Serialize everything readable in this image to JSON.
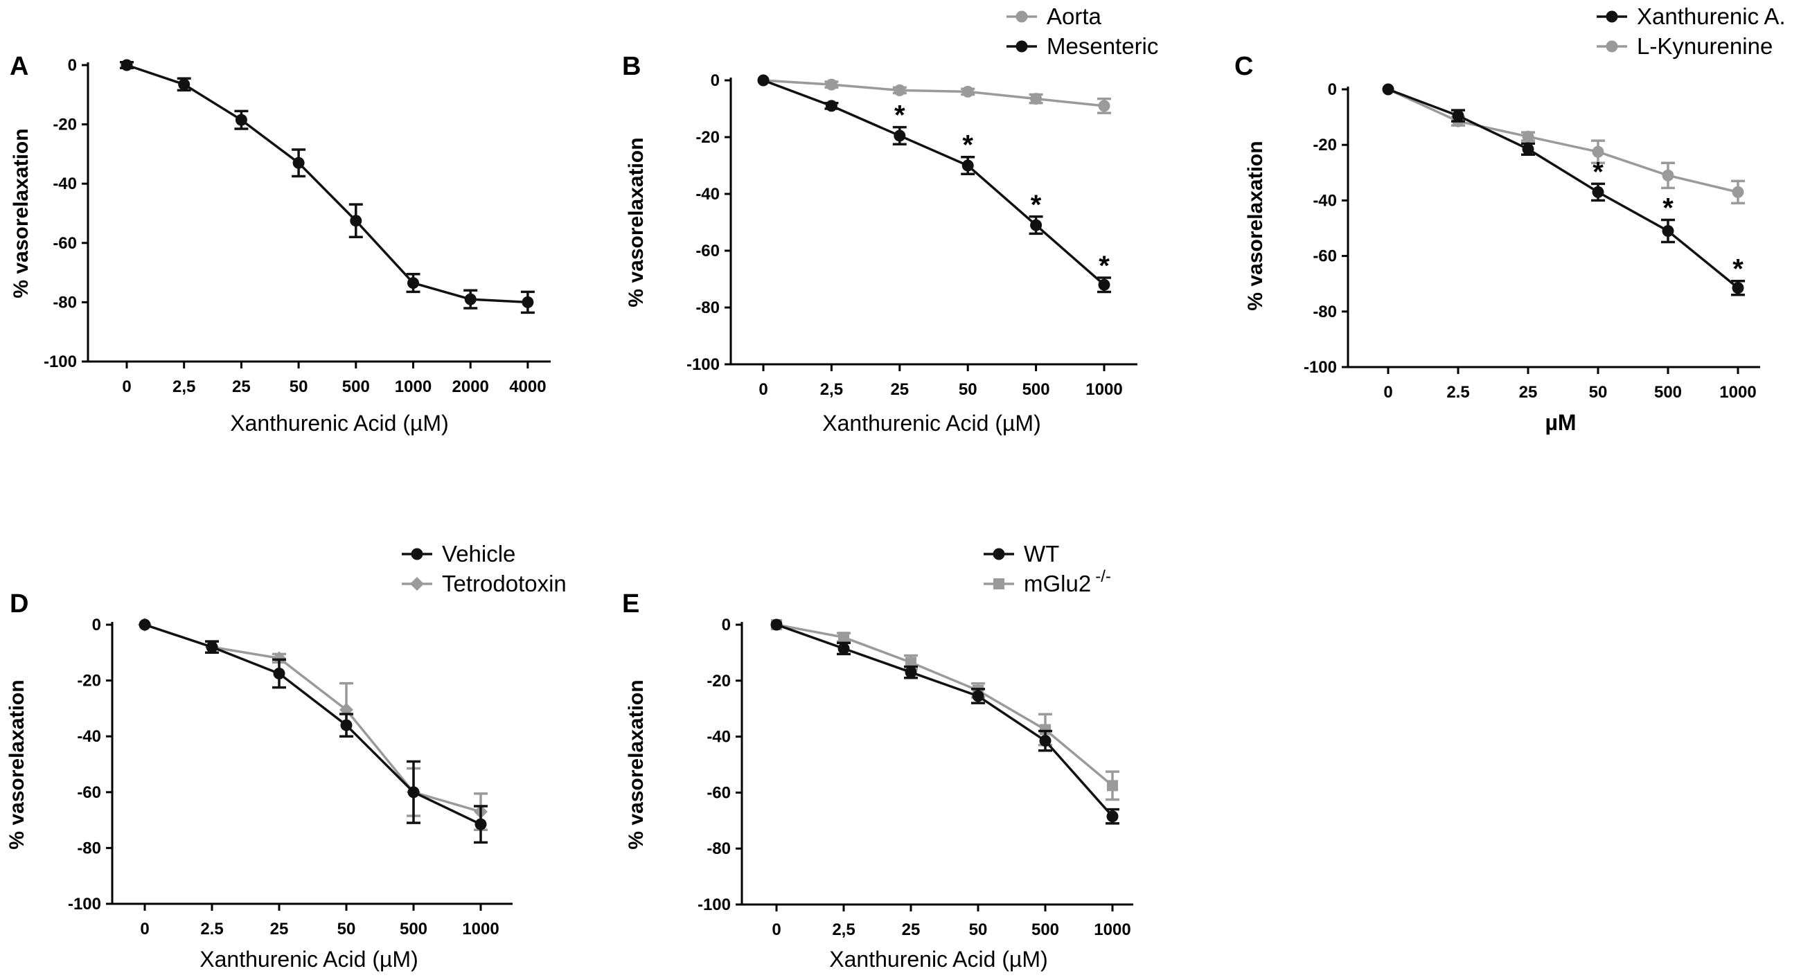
{
  "colors": {
    "black_series": "#111111",
    "gray_series": "#9a9a9a",
    "axis": "#000000"
  },
  "chart_data": [
    {
      "panel": "A",
      "type": "line",
      "xlabel": "Xanthurenic Acid (µM)",
      "ylabel": "% vasorelaxation",
      "ylim": [
        -100,
        0
      ],
      "yticks": [
        "0",
        "-20",
        "-40",
        "-60",
        "-80",
        "-100"
      ],
      "categories": [
        "0",
        "2,5",
        "25",
        "50",
        "500",
        "1000",
        "2000",
        "4000"
      ],
      "legend": "none",
      "series": [
        {
          "name": "Xanthurenic Acid",
          "color": "black",
          "marker": "circle",
          "values": [
            0,
            -6.5,
            -18.5,
            -33,
            -52.5,
            -73.5,
            -79,
            -80
          ],
          "errors": [
            1,
            2,
            3,
            4.5,
            5.5,
            3,
            3,
            3.5
          ]
        }
      ],
      "significance": []
    },
    {
      "panel": "B",
      "type": "line",
      "xlabel": "Xanthurenic Acid (µM)",
      "ylabel": "% vasorelaxation",
      "ylim": [
        -100,
        0
      ],
      "yticks": [
        "0",
        "-20",
        "-40",
        "-60",
        "-80",
        "-100"
      ],
      "categories": [
        "0",
        "2,5",
        "25",
        "50",
        "500",
        "1000"
      ],
      "legend": "top-right",
      "series": [
        {
          "name": "Aorta",
          "color": "gray",
          "marker": "circle",
          "values": [
            0,
            -1.5,
            -3.5,
            -4,
            -6.5,
            -9
          ],
          "errors": [
            0.5,
            1,
            1,
            1,
            1.5,
            2.5
          ]
        },
        {
          "name": "Mesenteric",
          "color": "black",
          "marker": "circle",
          "values": [
            0,
            -9,
            -19.5,
            -30,
            -51,
            -72
          ],
          "errors": [
            0.5,
            1,
            3,
            3,
            3,
            2.5
          ]
        }
      ],
      "significance": [
        2,
        3,
        4,
        5
      ]
    },
    {
      "panel": "C",
      "type": "line",
      "xlabel": "µM",
      "ylabel": "% vasorelaxation",
      "ylim": [
        -100,
        0
      ],
      "yticks": [
        "0",
        "-20",
        "-40",
        "-60",
        "-80",
        "-100"
      ],
      "categories": [
        "0",
        "2.5",
        "25",
        "50",
        "500",
        "1000"
      ],
      "legend": "top-right",
      "series": [
        {
          "name": "Xanthurenic A.",
          "color": "black",
          "marker": "circle",
          "values": [
            0,
            -9.5,
            -21.5,
            -37,
            -51,
            -71.5
          ],
          "errors": [
            0.5,
            2,
            2,
            3,
            4,
            2.5
          ]
        },
        {
          "name": "L-Kynurenine",
          "color": "gray",
          "marker": "circle",
          "values": [
            0,
            -11.5,
            -17,
            -22.5,
            -31,
            -37
          ],
          "errors": [
            0.5,
            1.5,
            1.5,
            4,
            4.5,
            4
          ]
        }
      ],
      "significance": [
        3,
        4,
        5
      ]
    },
    {
      "panel": "D",
      "type": "line",
      "xlabel": "Xanthurenic Acid (µM)",
      "ylabel": "% vasorelaxation",
      "ylim": [
        -100,
        0
      ],
      "yticks": [
        "0",
        "-20",
        "-40",
        "-60",
        "-80",
        "-100"
      ],
      "categories": [
        "0",
        "2.5",
        "25",
        "50",
        "500",
        "1000"
      ],
      "legend": "top-right",
      "series": [
        {
          "name": "Vehicle",
          "color": "black",
          "marker": "circle",
          "values": [
            0,
            -8,
            -17.5,
            -36,
            -60,
            -71.5
          ],
          "errors": [
            0.5,
            2,
            5,
            4,
            11,
            6.5
          ]
        },
        {
          "name": "Tetrodotoxin",
          "color": "gray",
          "marker": "diamond",
          "values": [
            0,
            -8,
            -12,
            -30.5,
            -60,
            -67
          ],
          "errors": [
            0.5,
            2,
            1.5,
            9.5,
            8.5,
            6.5
          ]
        }
      ],
      "significance": []
    },
    {
      "panel": "E",
      "type": "line",
      "xlabel": "Xanthurenic Acid (µM)",
      "ylabel": "% vasorelaxation",
      "ylim": [
        -100,
        0
      ],
      "yticks": [
        "0",
        "-20",
        "-40",
        "-60",
        "-80",
        "-100"
      ],
      "categories": [
        "0",
        "2,5",
        "25",
        "50",
        "500",
        "1000"
      ],
      "legend": "top-right",
      "series": [
        {
          "name": "WT",
          "color": "black",
          "marker": "circle",
          "values": [
            0,
            -8.5,
            -17,
            -25.5,
            -41.5,
            -68.5
          ],
          "errors": [
            0.5,
            2,
            2,
            2.5,
            3.5,
            2.5
          ]
        },
        {
          "name": "mGlu2",
          "superscript": "-/-",
          "color": "gray",
          "marker": "square",
          "values": [
            0,
            -4.5,
            -13.5,
            -23.5,
            -37.5,
            -57.5
          ],
          "errors": [
            0.5,
            1.5,
            2.5,
            2.5,
            5.5,
            5
          ]
        }
      ],
      "significance": []
    }
  ]
}
